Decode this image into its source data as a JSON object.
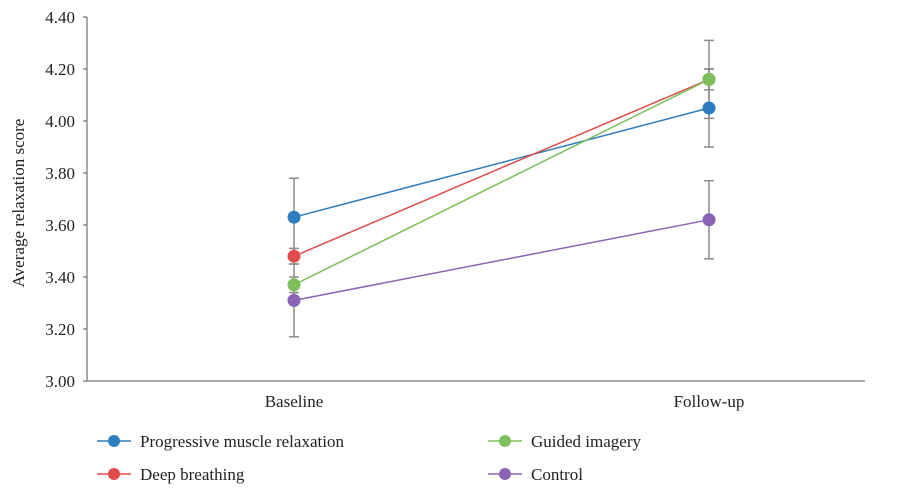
{
  "chart_data": {
    "type": "line",
    "categories": [
      "Baseline",
      "Follow-up"
    ],
    "ylabel": "Average relaxation score",
    "xlabel": "",
    "title": "",
    "ylim": [
      3.0,
      4.4
    ],
    "yticks": [
      "3.00",
      "3.20",
      "3.40",
      "3.60",
      "3.80",
      "4.00",
      "4.20",
      "4.40"
    ],
    "grid": false,
    "legend_position": "bottom",
    "series": [
      {
        "name": "Progressive muscle relaxation",
        "color": "#2e7dc0",
        "values": [
          3.63,
          4.05
        ],
        "errors": [
          0.15,
          0.15
        ]
      },
      {
        "name": "Deep breathing",
        "color": "#e04c4c",
        "values": [
          3.48,
          4.16
        ],
        "errors": [
          0.03,
          0.15
        ]
      },
      {
        "name": "Guided imagery",
        "color": "#7dbf5a",
        "values": [
          3.37,
          4.16
        ],
        "errors": [
          0.03,
          0.04
        ]
      },
      {
        "name": "Control",
        "color": "#8a63b5",
        "values": [
          3.31,
          3.62
        ],
        "errors": [
          0.14,
          0.15
        ]
      }
    ]
  }
}
